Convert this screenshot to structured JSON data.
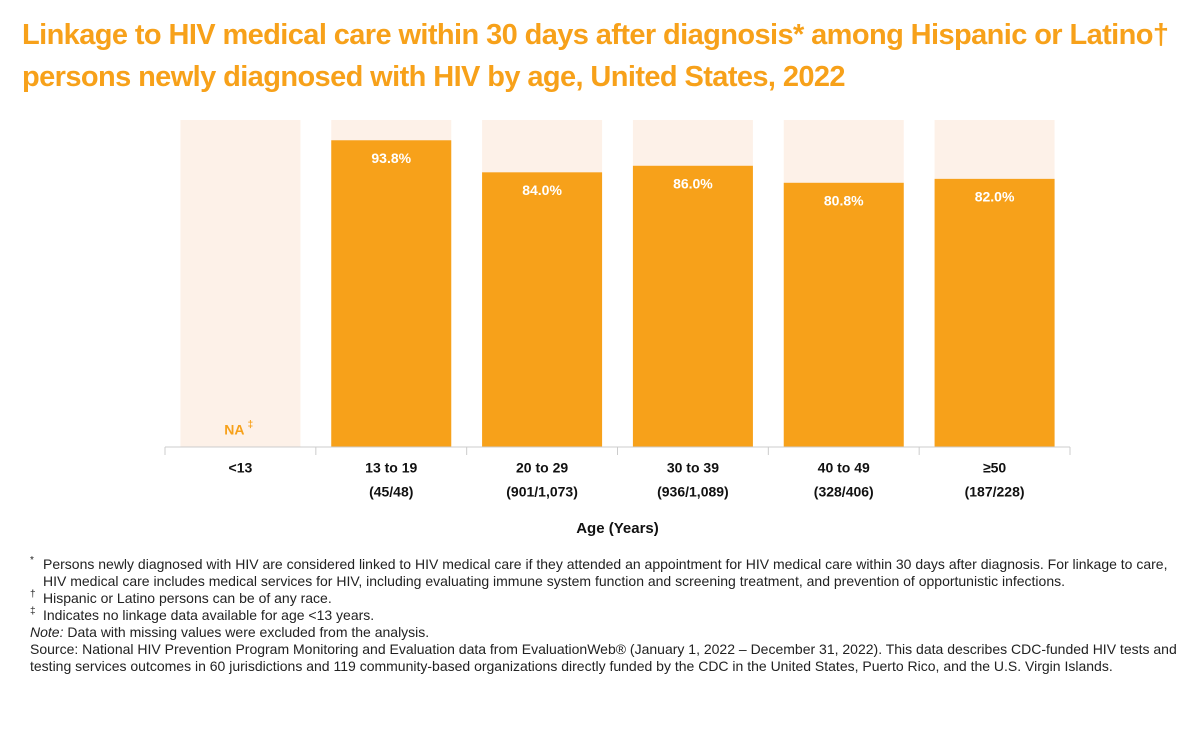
{
  "chart_data": {
    "type": "bar",
    "title": "Linkage to HIV medical care within 30 days after diagnosis* among Hispanic or Latino† persons newly diagnosed with HIV by age, United States, 2022",
    "categories": [
      "<13",
      "13 to 19",
      "20 to 29",
      "30 to 39",
      "40 to 49",
      "≥50"
    ],
    "counts": [
      null,
      "(45/48)",
      "(901/1,073)",
      "(936/1,089)",
      "(328/406)",
      "(187/228)"
    ],
    "values": [
      null,
      93.8,
      84.0,
      86.0,
      80.8,
      82.0
    ],
    "value_labels": [
      "NA",
      "93.8%",
      "84.0%",
      "86.0%",
      "80.8%",
      "82.0%"
    ],
    "na_mark": "‡",
    "x_label": "Age (Years)",
    "color": "#f7a11a",
    "ylim": [
      0,
      100
    ]
  },
  "footnotes": [
    {
      "mark": "*",
      "text": "Persons newly diagnosed with HIV are considered linked to HIV medical care if they attended an appointment for HIV medical care within 30 days after diagnosis. For linkage to care, HIV medical care includes medical services for HIV, including evaluating immune system function and screening treatment, and prevention of opportunistic infections."
    },
    {
      "mark": "†",
      "text": "Hispanic or Latino persons can be of any race."
    },
    {
      "mark": "‡",
      "text": "Indicates no linkage data available for age <13 years."
    }
  ],
  "note": {
    "label": "Note:",
    "text": "Data with missing values were excluded from the analysis."
  },
  "source": "Source: National HIV Prevention Program Monitoring and Evaluation data from EvaluationWeb® (January 1, 2022 – December 31, 2022). This data describes CDC-funded HIV tests and testing services outcomes in 60 jurisdictions and 119 community-based organizations directly funded by the CDC in the United States, Puerto Rico, and the U.S. Virgin Islands."
}
